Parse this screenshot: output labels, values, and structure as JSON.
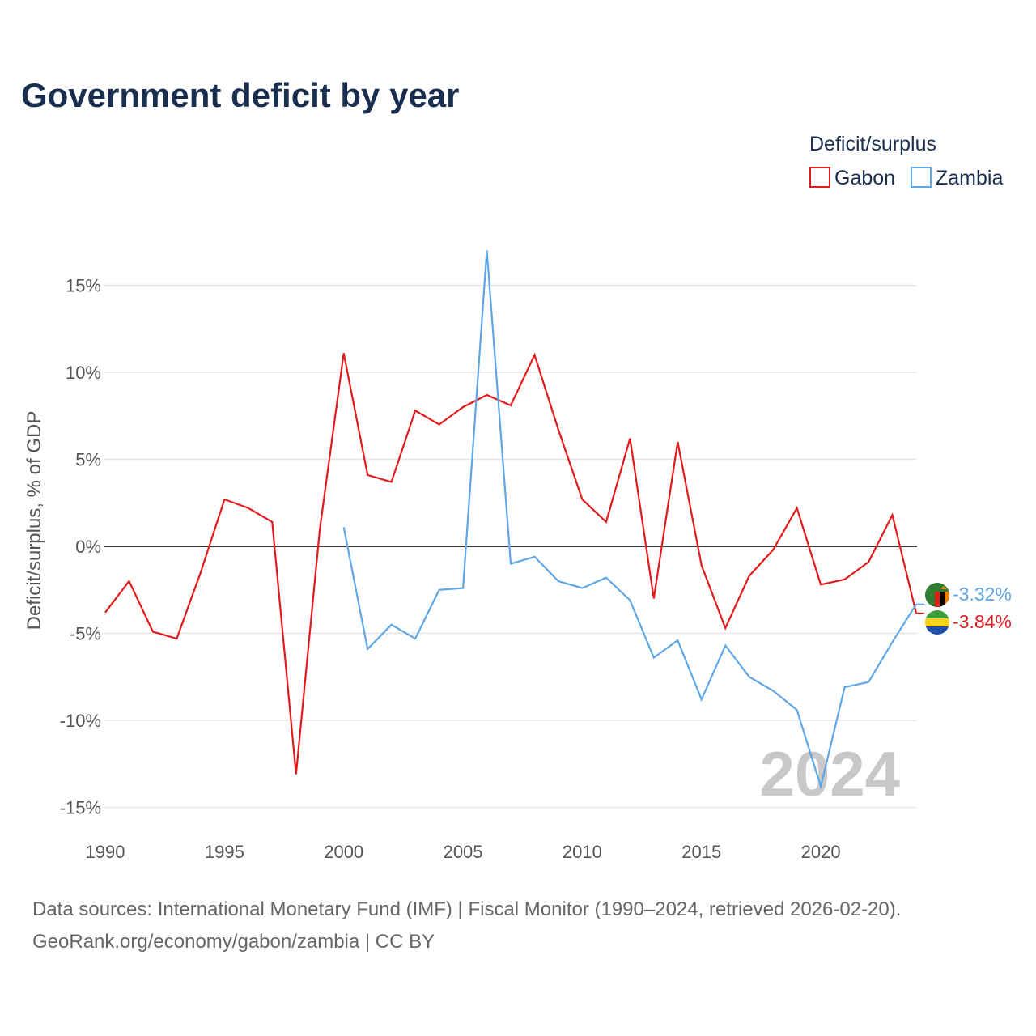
{
  "chart_data": {
    "type": "line",
    "title": "Government deficit by year",
    "legend_title": "Deficit/surplus",
    "legend_position": "top-right",
    "ylabel": "Deficit/surplus, % of GDP",
    "xlabel": "",
    "ylim": [
      -15,
      17
    ],
    "xlim": [
      1990,
      2024
    ],
    "y_ticks": [
      15,
      10,
      5,
      0,
      -5,
      -10,
      -15
    ],
    "y_tick_labels": [
      "15%",
      "10%",
      "5%",
      "0%",
      "-5%",
      "-10%",
      "-15%"
    ],
    "x_ticks": [
      1990,
      1995,
      2000,
      2005,
      2010,
      2015,
      2020
    ],
    "x_tick_labels": [
      "1990",
      "1995",
      "2000",
      "2005",
      "2010",
      "2015",
      "2020"
    ],
    "year_watermark": "2024",
    "series": [
      {
        "name": "Gabon",
        "color": "#e31a1c",
        "flag": "gabon-flag-icon",
        "end_label": "-3.84%",
        "x": [
          1990,
          1991,
          1992,
          1993,
          1994,
          1995,
          1996,
          1997,
          1998,
          1999,
          2000,
          2001,
          2002,
          2003,
          2004,
          2005,
          2006,
          2007,
          2008,
          2009,
          2010,
          2011,
          2012,
          2013,
          2014,
          2015,
          2016,
          2017,
          2018,
          2019,
          2020,
          2021,
          2022,
          2023,
          2024
        ],
        "values": [
          -3.8,
          -2.0,
          -4.9,
          -5.3,
          -1.5,
          2.7,
          2.2,
          1.4,
          -13.1,
          1.0,
          11.1,
          4.1,
          3.7,
          7.8,
          7.0,
          8.0,
          8.7,
          8.1,
          11.0,
          6.7,
          2.7,
          1.4,
          6.2,
          -3.0,
          6.0,
          -1.1,
          -4.7,
          -1.7,
          -0.2,
          2.2,
          -2.2,
          -1.9,
          -0.9,
          1.8,
          -3.84
        ]
      },
      {
        "name": "Zambia",
        "color": "#5ea6e6",
        "flag": "zambia-flag-icon",
        "end_label": "-3.32%",
        "x": [
          2000,
          2001,
          2002,
          2003,
          2004,
          2005,
          2006,
          2007,
          2008,
          2009,
          2010,
          2011,
          2012,
          2013,
          2014,
          2015,
          2016,
          2017,
          2018,
          2019,
          2020,
          2021,
          2022,
          2023,
          2024
        ],
        "values": [
          1.1,
          -5.9,
          -4.5,
          -5.3,
          -2.5,
          -2.4,
          17.0,
          -1.0,
          -0.6,
          -2.0,
          -2.4,
          -1.8,
          -3.1,
          -6.4,
          -5.4,
          -8.8,
          -5.7,
          -7.5,
          -8.3,
          -9.4,
          -13.8,
          -8.1,
          -7.8,
          -5.5,
          -3.32
        ]
      }
    ]
  },
  "source": {
    "line1": "Data sources: International Monetary Fund (IMF) | Fiscal Monitor (1990–2024, retrieved 2026-02-20).",
    "line2": "GeoRank.org/economy/gabon/zambia | CC BY"
  }
}
